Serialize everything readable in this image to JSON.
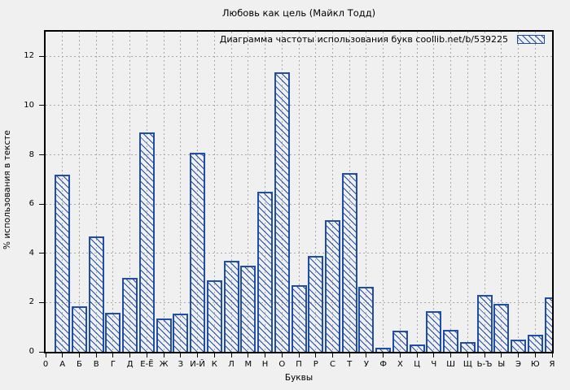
{
  "title": "Любовь как цель (Майкл Тодд)",
  "legend": {
    "label": "Диаграмма частоты использования букв  coollib.net/b/539225",
    "swatch": "hatched-bar-swatch"
  },
  "axes": {
    "x_label": "Буквы",
    "y_label": "% использования в тексте",
    "origin_label": "0"
  },
  "colors": {
    "bar": "#1f4da8",
    "background": "#f0f0f0",
    "grid": "#a9a9a9",
    "frame": "#000000"
  },
  "chart_data": {
    "type": "bar",
    "title": "Любовь как цель (Майкл Тодд)",
    "legend": "Диаграмма частоты использования букв  coollib.net/b/539225",
    "xlabel": "Буквы",
    "ylabel": "% использования в тексте",
    "categories": [
      "А",
      "Б",
      "В",
      "Г",
      "Д",
      "Е-Ё",
      "Ж",
      "З",
      "И-Й",
      "К",
      "Л",
      "М",
      "Н",
      "О",
      "П",
      "Р",
      "С",
      "Т",
      "У",
      "Ф",
      "Х",
      "Ц",
      "Ч",
      "Ш",
      "Щ",
      "Ь-Ъ",
      "Ы",
      "Э",
      "Ю",
      "Я"
    ],
    "values": [
      7.2,
      1.85,
      4.7,
      1.6,
      3.0,
      8.9,
      1.35,
      1.55,
      8.1,
      2.9,
      3.7,
      3.5,
      6.5,
      11.35,
      2.7,
      3.9,
      5.35,
      7.25,
      2.65,
      0.15,
      0.85,
      0.3,
      1.65,
      0.9,
      0.4,
      2.3,
      1.95,
      0.5,
      0.7,
      2.2
    ],
    "ylim": [
      0,
      13
    ],
    "yticks": [
      0,
      2,
      4,
      6,
      8,
      10,
      12
    ],
    "x_origin_label": "0",
    "grid": true,
    "hatch": "backslash-diagonal",
    "legend_position": "top-right-inside",
    "bar_color": "#1f4da8",
    "background": "#f0f0f0"
  }
}
